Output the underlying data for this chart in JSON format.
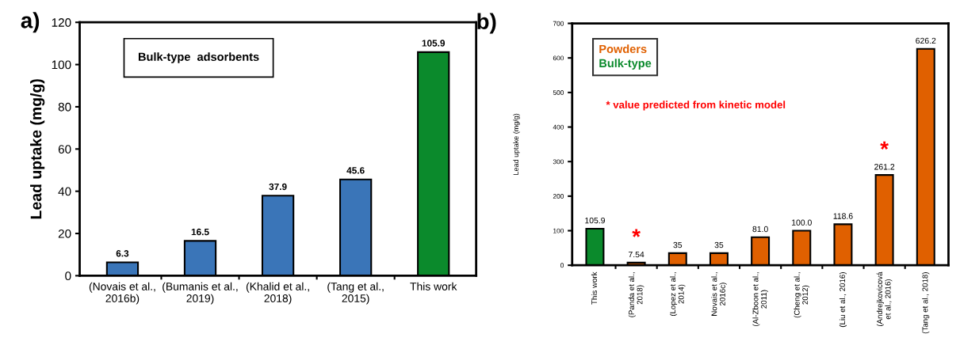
{
  "chart_data": [
    {
      "type": "bar",
      "title": "a)",
      "ylabel": "Lead uptake (mg/g)",
      "categories": [
        "(Novais et al.,\n2016b)",
        "(Bumanis et al.,\n2019)",
        "(Khalid et al.,\n2018)",
        "(Tang et al.,\n2015)",
        "This work"
      ],
      "values": [
        6.3,
        16.5,
        37.9,
        45.6,
        105.9
      ],
      "colors": [
        "#3a75b8",
        "#3a75b8",
        "#3a75b8",
        "#3a75b8",
        "#0b8a2c"
      ],
      "ylim": [
        0,
        120
      ],
      "yticks": [
        0,
        20,
        40,
        60,
        80,
        100,
        120
      ],
      "grid": false,
      "data_labels": true,
      "annotations": [
        "Bulk-type  adsorbents"
      ]
    },
    {
      "type": "bar",
      "title": "b)",
      "ylabel": "Lead uptake (mg/g)",
      "categories": [
        "This work",
        "(Panda et al.,\n2018)",
        "(Lopez et al.,\n2014)",
        "Novais et al.,\n2016c)",
        "(Al-Zboon et al.,\n2011)",
        "(Cheng et al.,\n2012)",
        "(Liu et al., 2016)",
        "(Andrejkovicová\net al., 2016)",
        "(Tang et al., 2018)"
      ],
      "series": [
        {
          "name": "Powders",
          "color": "#e06000",
          "values": [
            null,
            7.54,
            35,
            35,
            81.0,
            100.0,
            118.6,
            261.2,
            626.2
          ],
          "value_labels": [
            null,
            "7.54",
            "35",
            "35",
            "81.0",
            "100.0",
            "118.6",
            "261.2",
            "626.2"
          ]
        },
        {
          "name": "Bulk-type",
          "color": "#0b8a2c",
          "values": [
            105.9,
            null,
            null,
            null,
            null,
            null,
            null,
            null,
            null
          ]
        }
      ],
      "ylim": [
        0,
        700
      ],
      "yticks": [
        0,
        100,
        200,
        300,
        400,
        500,
        600,
        700
      ],
      "grid": false,
      "data_labels": true,
      "legend": "top left",
      "annotations": [
        "* value predicted from kinetic model",
        {
          "text": "*",
          "x": "(Panda et al.,\n2018)",
          "y": 7.54
        },
        {
          "text": "*",
          "x": "(Andrejkovicová\net al., 2016)",
          "y": 261.2
        }
      ]
    }
  ]
}
